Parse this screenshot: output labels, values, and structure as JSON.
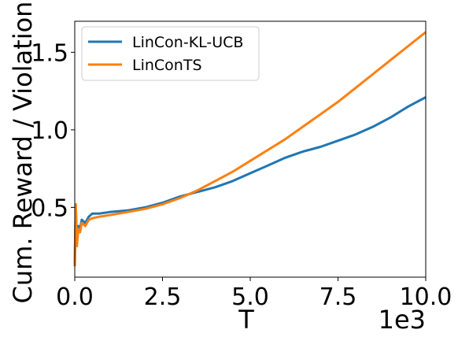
{
  "chart_data": {
    "type": "line",
    "title": "",
    "xlabel": "T",
    "ylabel": "Cum. Reward / Violation",
    "x_offset_label": "1e3",
    "xlim": [
      0,
      10
    ],
    "ylim": [
      0.05,
      1.7
    ],
    "x_ticks": [
      0,
      2.5,
      5,
      7.5,
      10
    ],
    "x_tick_labels": [
      "0.0",
      "2.5",
      "5.0",
      "7.5",
      "10.0"
    ],
    "y_ticks": [
      0.5,
      1.0,
      1.5
    ],
    "y_tick_labels": [
      "0.5",
      "1.0",
      "1.5"
    ],
    "grid": false,
    "legend_position": "top-left",
    "series": [
      {
        "name": "LinCon-KL-UCB",
        "color": "#1f77b4",
        "x": [
          0,
          0.03,
          0.06,
          0.1,
          0.15,
          0.2,
          0.3,
          0.4,
          0.5,
          0.7,
          1.0,
          1.5,
          2.0,
          2.5,
          3.0,
          3.5,
          4.0,
          4.5,
          5.0,
          5.5,
          6.0,
          6.5,
          7.0,
          7.5,
          8.0,
          8.5,
          9.0,
          9.5,
          10.0
        ],
        "values": [
          0.14,
          0.5,
          0.3,
          0.38,
          0.36,
          0.42,
          0.4,
          0.44,
          0.46,
          0.46,
          0.47,
          0.48,
          0.5,
          0.53,
          0.57,
          0.6,
          0.63,
          0.67,
          0.72,
          0.77,
          0.82,
          0.86,
          0.89,
          0.93,
          0.97,
          1.02,
          1.08,
          1.15,
          1.21
        ]
      },
      {
        "name": "LinConTS",
        "color": "#ff7f0e",
        "x": [
          0,
          0.03,
          0.06,
          0.1,
          0.15,
          0.2,
          0.3,
          0.4,
          0.5,
          0.7,
          1.0,
          1.5,
          2.0,
          2.5,
          3.0,
          3.5,
          4.0,
          4.5,
          5.0,
          5.5,
          6.0,
          6.5,
          7.0,
          7.5,
          8.0,
          8.5,
          9.0,
          9.5,
          10.0
        ],
        "values": [
          0.12,
          0.52,
          0.25,
          0.36,
          0.34,
          0.4,
          0.38,
          0.42,
          0.43,
          0.44,
          0.45,
          0.47,
          0.49,
          0.52,
          0.56,
          0.61,
          0.67,
          0.73,
          0.8,
          0.87,
          0.94,
          1.02,
          1.1,
          1.18,
          1.27,
          1.36,
          1.45,
          1.54,
          1.63
        ]
      }
    ]
  }
}
